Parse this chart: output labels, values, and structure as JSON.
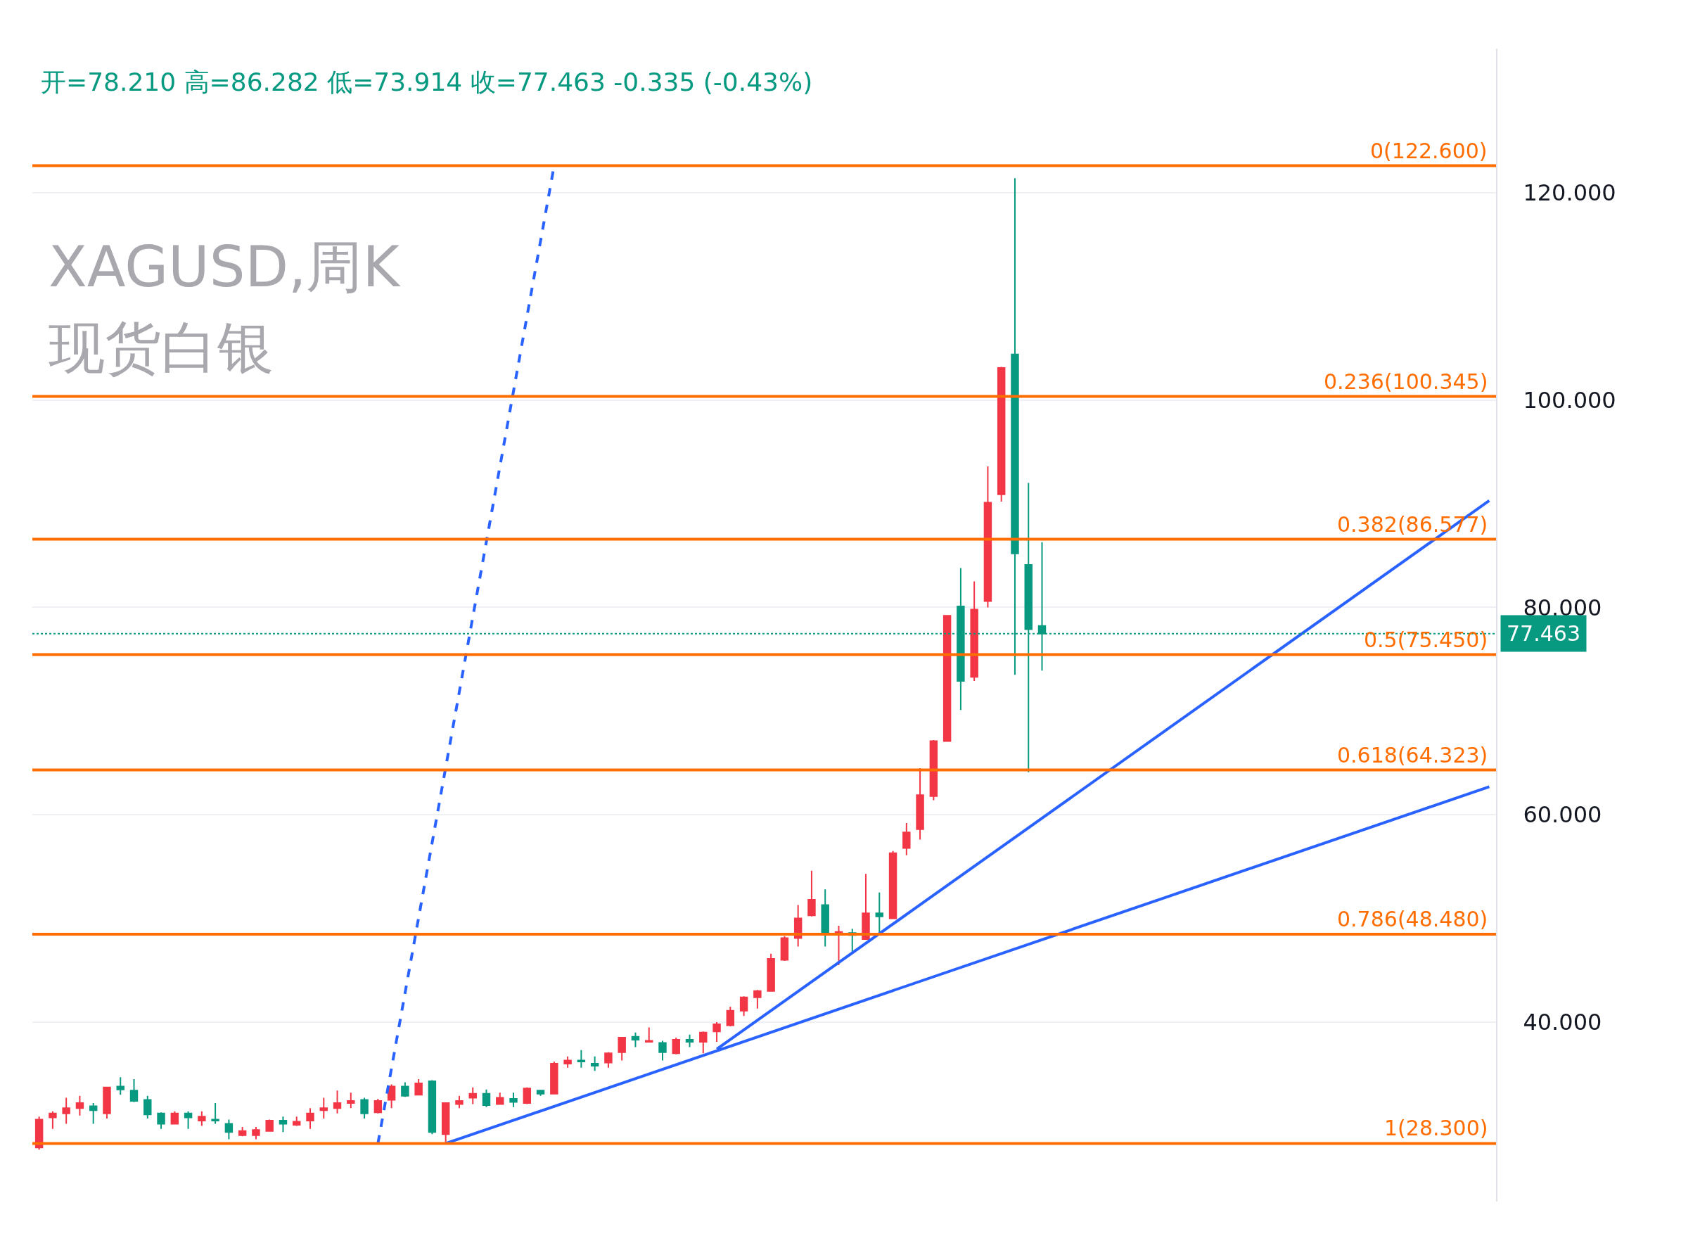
{
  "chart_data": {
    "type": "candlestick",
    "subtitle": "开=78.210 高=86.282 低=73.914 收=77.463 -0.335 (-0.43%)",
    "categories": [
      null,
      null,
      null,
      null,
      null,
      null,
      null,
      null,
      null,
      null,
      null,
      null,
      null,
      null,
      null,
      null,
      null,
      null,
      null,
      null,
      null,
      null,
      null,
      null,
      null,
      null,
      null,
      null,
      null,
      null,
      null,
      null,
      null,
      null,
      null,
      null,
      null,
      null,
      null,
      null,
      null,
      null,
      null,
      null,
      null,
      null,
      null,
      null,
      null,
      null,
      null,
      null,
      null,
      null,
      null,
      null,
      null,
      null,
      null,
      null,
      null,
      null,
      null,
      null,
      null,
      null,
      null,
      null,
      null,
      null,
      null,
      null,
      null,
      null,
      null,
      null,
      null,
      null,
      null,
      null,
      null,
      null,
      null,
      null,
      null,
      null,
      null,
      null,
      null,
      null,
      null,
      null,
      null,
      null,
      null,
      null,
      null,
      null,
      null,
      null,
      null,
      null,
      null,
      null,
      null,
      null,
      null,
      null
    ],
    "ohlc": [
      [
        27.9,
        30.9,
        27.7,
        30.6
      ],
      [
        30.8,
        31.4,
        29.7,
        31.2
      ],
      [
        31.2,
        32.7,
        30.2,
        31.7
      ],
      [
        31.7,
        32.9,
        31.0,
        32.2
      ],
      [
        31.9,
        32.2,
        30.2,
        31.5
      ],
      [
        31.2,
        33.7,
        30.7,
        33.7
      ],
      [
        33.8,
        34.7,
        33.0,
        33.5
      ],
      [
        33.4,
        34.5,
        32.3,
        32.4
      ],
      [
        32.5,
        32.9,
        30.7,
        31.1
      ],
      [
        31.2,
        31.3,
        29.7,
        30.2
      ],
      [
        30.2,
        31.4,
        30.2,
        31.2
      ],
      [
        31.2,
        31.4,
        29.7,
        30.8
      ],
      [
        30.5,
        31.4,
        30.0,
        30.9
      ],
      [
        30.6,
        32.2,
        30.2,
        30.5
      ],
      [
        30.2,
        30.6,
        28.7,
        29.4
      ],
      [
        29.1,
        29.9,
        29.0,
        29.5
      ],
      [
        29.1,
        29.9,
        28.7,
        29.6
      ],
      [
        29.5,
        30.6,
        29.5,
        30.5
      ],
      [
        30.5,
        30.9,
        29.4,
        30.2
      ],
      [
        30.1,
        30.9,
        30.0,
        30.4
      ],
      [
        30.5,
        31.7,
        29.7,
        31.2
      ],
      [
        31.5,
        32.7,
        30.7,
        31.7
      ],
      [
        31.7,
        33.4,
        31.2,
        32.2
      ],
      [
        32.2,
        33.2,
        31.7,
        32.4
      ],
      [
        32.5,
        32.7,
        30.7,
        31.2
      ],
      [
        31.3,
        32.6,
        31.2,
        32.4
      ],
      [
        32.5,
        34.0,
        31.7,
        33.8
      ],
      [
        33.8,
        34.2,
        32.8,
        32.9
      ],
      [
        33.0,
        34.5,
        33.0,
        34.1
      ],
      [
        34.3,
        34.4,
        29.2,
        29.4
      ],
      [
        29.2,
        32.2,
        28.4,
        32.2
      ],
      [
        32.1,
        32.9,
        31.7,
        32.4
      ],
      [
        32.7,
        33.7,
        32.1,
        33.1
      ],
      [
        33.1,
        33.5,
        31.8,
        32.0
      ],
      [
        32.1,
        33.2,
        32.1,
        32.7
      ],
      [
        32.6,
        33.2,
        31.8,
        32.3
      ],
      [
        32.2,
        33.7,
        32.1,
        33.6
      ],
      [
        33.4,
        33.4,
        32.9,
        33.1
      ],
      [
        33.1,
        36.2,
        33.1,
        36.0
      ],
      [
        36.0,
        36.7,
        35.6,
        36.3
      ],
      [
        36.3,
        37.3,
        35.6,
        36.2
      ],
      [
        36.0,
        36.7,
        35.3,
        35.8
      ],
      [
        36.1,
        37.1,
        35.6,
        37.0
      ],
      [
        37.1,
        38.5,
        36.3,
        38.5
      ],
      [
        38.6,
        39.0,
        37.6,
        38.3
      ],
      [
        38.1,
        39.5,
        38.1,
        38.2
      ],
      [
        38.0,
        38.2,
        36.3,
        37.1
      ],
      [
        37.0,
        38.5,
        36.9,
        38.3
      ],
      [
        38.3,
        38.8,
        37.6,
        38.1
      ],
      [
        38.1,
        39.1,
        37.0,
        39.0
      ],
      [
        39.1,
        40.0,
        38.1,
        39.8
      ],
      [
        39.7,
        41.5,
        39.6,
        41.1
      ],
      [
        41.1,
        42.5,
        40.6,
        42.4
      ],
      [
        42.4,
        43.1,
        41.3,
        43.0
      ],
      [
        43.0,
        46.6,
        43.0,
        46.1
      ],
      [
        46.0,
        48.3,
        45.9,
        48.1
      ],
      [
        48.1,
        51.3,
        47.3,
        50.0
      ],
      [
        50.3,
        54.6,
        50.2,
        51.8
      ],
      [
        51.3,
        52.8,
        47.3,
        48.6
      ],
      [
        48.6,
        49.3,
        45.5,
        48.7
      ],
      [
        48.6,
        49.0,
        46.8,
        48.4
      ],
      [
        48.0,
        54.3,
        48.0,
        50.5
      ],
      [
        50.5,
        52.5,
        48.5,
        50.2
      ],
      [
        50.0,
        56.5,
        50.0,
        56.3
      ],
      [
        56.8,
        59.2,
        56.1,
        58.3
      ],
      [
        58.6,
        64.5,
        57.6,
        61.9
      ],
      [
        61.8,
        67.2,
        61.4,
        67.1
      ],
      [
        67.1,
        79.2,
        67.1,
        79.2
      ],
      [
        80.1,
        83.8,
        70.1,
        72.9
      ],
      [
        73.3,
        82.5,
        72.9,
        79.8
      ],
      [
        80.6,
        93.6,
        80.0,
        90.1
      ],
      [
        90.9,
        103.2,
        90.2,
        103.1
      ],
      [
        104.4,
        121.4,
        73.5,
        85.2
      ],
      [
        84.1,
        92.0,
        64.1,
        77.9
      ],
      [
        78.21,
        86.282,
        73.914,
        77.463
      ],
      null,
      null,
      null,
      null,
      null,
      null,
      null,
      null,
      null,
      null,
      null,
      null,
      null,
      null,
      null,
      null,
      null,
      null,
      null,
      null,
      null,
      null,
      null,
      null,
      null,
      null,
      null,
      null,
      null,
      null,
      null,
      null,
      null
    ],
    "annotations": [
      "XAGUSD,周K",
      "现货白银"
    ],
    "colors": [
      "#f23645",
      "#f23645",
      "#f23645",
      "#f23645",
      "#089981",
      "#f23645",
      "#089981",
      "#089981",
      "#089981",
      "#089981",
      "#f23645",
      "#089981",
      "#f23645",
      "#089981",
      "#089981",
      "#f23645",
      "#f23645",
      "#f23645",
      "#089981",
      "#f23645",
      "#f23645",
      "#f23645",
      "#f23645",
      "#f23645",
      "#089981",
      "#f23645",
      "#f23645",
      "#089981",
      "#f23645",
      "#089981",
      "#f23645",
      "#f23645",
      "#f23645",
      "#089981",
      "#f23645",
      "#089981",
      "#f23645",
      "#089981",
      "#f23645",
      "#f23645",
      "#089981",
      "#089981",
      "#f23645",
      "#f23645",
      "#089981",
      "#f23645",
      "#089981",
      "#f23645",
      "#089981",
      "#f23645",
      "#f23645",
      "#f23645",
      "#f23645",
      "#f23645",
      "#f23645",
      "#f23645",
      "#f23645",
      "#f23645",
      "#089981",
      "#f23645",
      "#089981",
      "#f23645",
      "#089981",
      "#f23645",
      "#f23645",
      "#f23645",
      "#f23645",
      "#f23645",
      "#089981",
      "#f23645",
      "#f23645",
      "#f23645",
      "#089981",
      "#089981",
      "#089981",
      null,
      null,
      null,
      null,
      null,
      null,
      null,
      null,
      null,
      null,
      null,
      null,
      null,
      null,
      null,
      null,
      null,
      null,
      null,
      null,
      null,
      null,
      null,
      null,
      null,
      null,
      null,
      null,
      null,
      null,
      null,
      null,
      null
    ],
    "series": [
      {
        "type": "line",
        "color": "#2962ff",
        "line_style": "dashed",
        "values": [
          null,
          null,
          null,
          null,
          null,
          null,
          null,
          null,
          null,
          null,
          null,
          null,
          null,
          null,
          null,
          null,
          null,
          null,
          null,
          null,
          null,
          null,
          null,
          null,
          null,
          28.3,
          null,
          null,
          null,
          null,
          null,
          null,
          null,
          null,
          null,
          null,
          null,
          null,
          122.6,
          null,
          null,
          null,
          null,
          null,
          null,
          null,
          null,
          null,
          null,
          null,
          null,
          null,
          null,
          null,
          null,
          null,
          null,
          null,
          null,
          null,
          null,
          null,
          null,
          null,
          null,
          null,
          null,
          null,
          null,
          null,
          null,
          null,
          null,
          null,
          null,
          null,
          null,
          null,
          null,
          null,
          null,
          null,
          null,
          null,
          null,
          null,
          null,
          null,
          null,
          null,
          null,
          null,
          null,
          null,
          null,
          null,
          null,
          null,
          null,
          null,
          null,
          null,
          null,
          null,
          null,
          null,
          null,
          null
        ]
      },
      {
        "type": "line",
        "color": "#2962ff",
        "line_style": "solid",
        "values": [
          null,
          null,
          null,
          null,
          null,
          null,
          null,
          null,
          null,
          null,
          null,
          null,
          null,
          null,
          null,
          null,
          null,
          null,
          null,
          null,
          null,
          null,
          null,
          null,
          null,
          null,
          null,
          null,
          null,
          null,
          28.3,
          null,
          null,
          null,
          null,
          null,
          null,
          null,
          null,
          null,
          null,
          null,
          null,
          null,
          null,
          null,
          null,
          null,
          null,
          null,
          null,
          null,
          null,
          null,
          null,
          null,
          null,
          null,
          null,
          null,
          null,
          null,
          null,
          null,
          null,
          null,
          null,
          null,
          null,
          null,
          null,
          null,
          null,
          null,
          null,
          null,
          null,
          null,
          null,
          null,
          null,
          null,
          null,
          null,
          null,
          null,
          null,
          null,
          null,
          null,
          null,
          null,
          null,
          null,
          null,
          null,
          null,
          null,
          null,
          null,
          null,
          null,
          null,
          null,
          null,
          null,
          null,
          62.7
        ]
      },
      {
        "type": "line",
        "color": "#2962ff",
        "line_style": "solid",
        "values": [
          null,
          null,
          null,
          null,
          null,
          null,
          null,
          null,
          null,
          null,
          null,
          null,
          null,
          null,
          null,
          null,
          null,
          null,
          null,
          null,
          null,
          null,
          null,
          null,
          null,
          null,
          null,
          null,
          null,
          null,
          null,
          null,
          null,
          null,
          null,
          null,
          null,
          null,
          null,
          null,
          null,
          null,
          null,
          null,
          null,
          null,
          null,
          null,
          null,
          null,
          37.4,
          null,
          null,
          null,
          null,
          null,
          null,
          null,
          null,
          null,
          null,
          null,
          null,
          null,
          null,
          null,
          null,
          null,
          null,
          null,
          null,
          null,
          null,
          null,
          null,
          null,
          null,
          null,
          null,
          null,
          null,
          null,
          null,
          null,
          null,
          null,
          null,
          null,
          null,
          null,
          null,
          null,
          null,
          null,
          null,
          null,
          null,
          null,
          null,
          null,
          null,
          null,
          null,
          null,
          null,
          null,
          null,
          90.3
        ]
      }
    ],
    "ref_lines": [
      {
        "axis": "y",
        "value": 122.6,
        "label": "0(122.600)",
        "color": "#ff6d00"
      },
      {
        "axis": "y",
        "value": 100.345,
        "label": "0.236(100.345)",
        "color": "#ff6d00"
      },
      {
        "axis": "y",
        "value": 86.577,
        "label": "0.382(86.577)",
        "color": "#ff6d00"
      },
      {
        "axis": "y",
        "value": 75.45,
        "label": "0.5(75.450)",
        "color": "#ff6d00"
      },
      {
        "axis": "y",
        "value": 64.323,
        "label": "0.618(64.323)",
        "color": "#ff6d00"
      },
      {
        "axis": "y",
        "value": 48.48,
        "label": "0.786(48.480)",
        "color": "#ff6d00"
      },
      {
        "axis": "y",
        "value": 28.3,
        "label": "1(28.300)",
        "color": "#ff6d00"
      },
      {
        "axis": "y",
        "value": 77.463,
        "label": "77.463",
        "color": "#089981",
        "line_style": "dotted"
      }
    ],
    "ylim": [
      22.7,
      133.9
    ],
    "yticks": [
      {
        "value": 40,
        "label": "40.000"
      },
      {
        "value": 60,
        "label": "60.000"
      },
      {
        "value": 80,
        "label": "80.000"
      },
      {
        "value": 100,
        "label": "100.000"
      },
      {
        "value": 120,
        "label": "120.000"
      }
    ],
    "tick_labels": "y",
    "grid": "y"
  }
}
